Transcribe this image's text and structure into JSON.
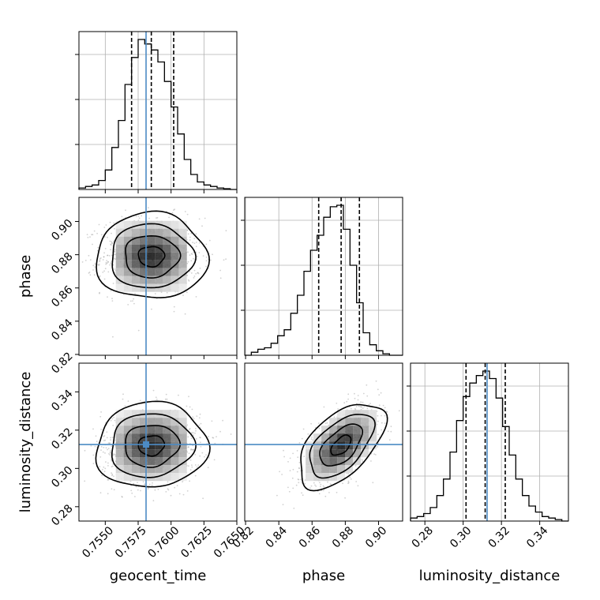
{
  "chart_data": {
    "type": "corner",
    "parameters": [
      {
        "key": "geocent_time",
        "label": "geocent_time",
        "range": [
          0.753,
          0.765
        ],
        "ticks": [
          0.755,
          0.7575,
          0.76,
          0.7625,
          0.765
        ],
        "tick_labels": [
          "0.7550",
          "0.7575",
          "0.7600",
          "0.7625",
          "0.7650"
        ],
        "injection": 0.7581,
        "quantiles": [
          0.757,
          0.7585,
          0.7602
        ],
        "hist_counts": [
          1,
          2,
          3,
          6,
          13,
          28,
          46,
          70,
          88,
          100,
          97,
          93,
          85,
          72,
          55,
          37,
          20,
          10,
          5,
          3,
          2,
          1,
          0.5,
          0
        ]
      },
      {
        "key": "phase",
        "label": "phase",
        "range": [
          0.8195,
          0.9145
        ],
        "ticks": [
          0.82,
          0.84,
          0.86,
          0.88,
          0.9
        ],
        "tick_labels": [
          "0.82",
          "0.84",
          "0.86",
          "0.88",
          "0.90"
        ],
        "injection": null,
        "quantiles": [
          0.864,
          0.8775,
          0.8885
        ],
        "hist_counts": [
          0,
          2,
          4,
          5,
          8,
          13,
          17,
          28,
          40,
          56,
          70,
          80,
          92,
          99,
          100,
          84,
          60,
          35,
          15,
          7,
          3,
          1,
          0,
          0
        ]
      },
      {
        "key": "luminosity_distance",
        "label": "luminosity_distance",
        "range": [
          0.2725,
          0.355
        ],
        "ticks": [
          0.28,
          0.3,
          0.32,
          0.34
        ],
        "tick_labels": [
          "0.28",
          "0.30",
          "0.32",
          "0.34"
        ],
        "injection": 0.3125,
        "quantiles": [
          0.3015,
          0.3115,
          0.322
        ],
        "hist_counts": [
          2,
          3,
          5,
          9,
          17,
          28,
          46,
          67,
          83,
          92,
          97,
          100,
          95,
          82,
          63,
          44,
          28,
          17,
          10,
          6,
          3,
          2,
          1,
          0
        ]
      }
    ],
    "pairs": [
      {
        "x": "geocent_time",
        "y": "phase",
        "center": [
          0.7585,
          0.879
        ],
        "sigma": [
          0.0018,
          0.011
        ],
        "rho": 0.0
      },
      {
        "x": "geocent_time",
        "y": "luminosity_distance",
        "center": [
          0.7585,
          0.312
        ],
        "sigma": [
          0.0018,
          0.0095
        ],
        "rho": 0.05
      },
      {
        "x": "phase",
        "y": "luminosity_distance",
        "center": [
          0.8775,
          0.312
        ],
        "sigma": [
          0.011,
          0.0095
        ],
        "rho": 0.55
      }
    ],
    "colors": {
      "truth": "#4c8bc4",
      "hist": "#000000",
      "grid": "#b0b0b0",
      "points": "#7a7a7a"
    }
  }
}
